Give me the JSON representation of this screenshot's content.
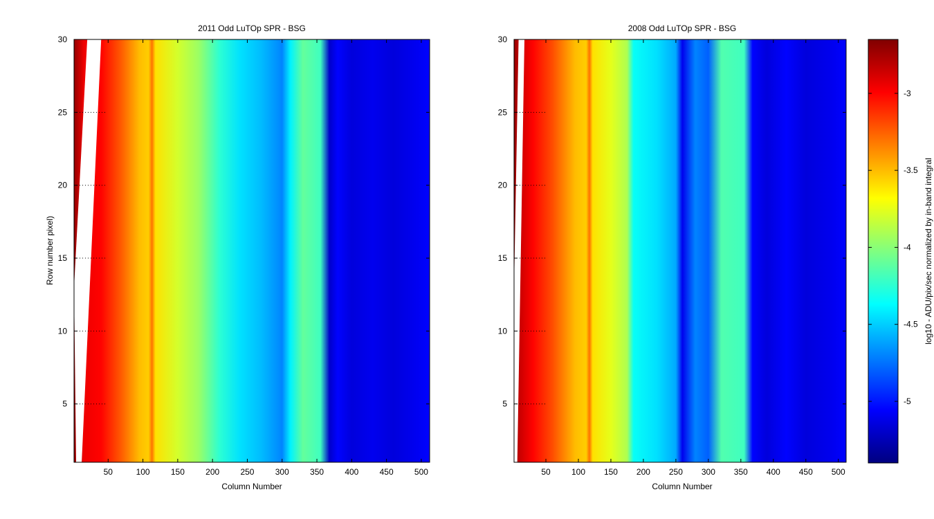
{
  "chart_data": [
    {
      "type": "heatmap",
      "title": "2011 Odd LuTOp SPR - BSG",
      "xlabel": "Column Number",
      "ylabel": "Row number pixel)",
      "xlim": [
        1,
        512
      ],
      "ylim": [
        1,
        30
      ],
      "x_ticks": [
        50,
        100,
        150,
        200,
        250,
        300,
        350,
        400,
        450,
        500
      ],
      "y_ticks": [
        5,
        10,
        15,
        20,
        25,
        30
      ],
      "grid": "dotted",
      "blank_wedge": {
        "left_column_at_row_30": 20,
        "right_column_at_row_30": 40,
        "left_column_at_row_1": 4,
        "right_column_at_row_1": 12,
        "extends_to_row": 13
      },
      "profile": [
        {
          "column": 1,
          "value": -2.7
        },
        {
          "column": 15,
          "value": -2.95
        },
        {
          "column": 40,
          "value": -3.0
        },
        {
          "column": 70,
          "value": -3.25
        },
        {
          "column": 95,
          "value": -3.5
        },
        {
          "column": 108,
          "value": -3.55
        },
        {
          "column": 113,
          "value": -3.3
        },
        {
          "column": 118,
          "value": -3.6
        },
        {
          "column": 150,
          "value": -3.8
        },
        {
          "column": 180,
          "value": -3.95
        },
        {
          "column": 210,
          "value": -4.25
        },
        {
          "column": 240,
          "value": -4.45
        },
        {
          "column": 270,
          "value": -4.55
        },
        {
          "column": 300,
          "value": -4.7
        },
        {
          "column": 312,
          "value": -4.4
        },
        {
          "column": 330,
          "value": -4.1
        },
        {
          "column": 355,
          "value": -4.2
        },
        {
          "column": 368,
          "value": -5.2
        },
        {
          "column": 380,
          "value": -5.05
        },
        {
          "column": 400,
          "value": -5.15
        },
        {
          "column": 430,
          "value": -5.1
        },
        {
          "column": 460,
          "value": -5.15
        },
        {
          "column": 490,
          "value": -5.1
        },
        {
          "column": 512,
          "value": -5.05
        }
      ]
    },
    {
      "type": "heatmap",
      "title": "2008 Odd LuTOp SPR - BSG",
      "xlabel": "Column Number",
      "ylabel": "",
      "xlim": [
        1,
        512
      ],
      "ylim": [
        1,
        30
      ],
      "x_ticks": [
        50,
        100,
        150,
        200,
        250,
        300,
        350,
        400,
        450,
        500
      ],
      "y_ticks": [
        5,
        10,
        15,
        20,
        25,
        30
      ],
      "grid": "dotted",
      "blank_wedge": {
        "left_column_at_row_30": 8,
        "right_column_at_row_30": 17,
        "left_column_at_row_1": 1,
        "right_column_at_row_1": 6,
        "extends_to_row": 13
      },
      "profile": [
        {
          "column": 1,
          "value": -2.7
        },
        {
          "column": 10,
          "value": -2.85
        },
        {
          "column": 30,
          "value": -3.0
        },
        {
          "column": 60,
          "value": -3.2
        },
        {
          "column": 95,
          "value": -3.5
        },
        {
          "column": 112,
          "value": -3.55
        },
        {
          "column": 117,
          "value": -3.3
        },
        {
          "column": 122,
          "value": -3.6
        },
        {
          "column": 150,
          "value": -3.75
        },
        {
          "column": 175,
          "value": -3.9
        },
        {
          "column": 185,
          "value": -4.35
        },
        {
          "column": 220,
          "value": -4.45
        },
        {
          "column": 250,
          "value": -4.6
        },
        {
          "column": 260,
          "value": -5.1
        },
        {
          "column": 280,
          "value": -4.7
        },
        {
          "column": 300,
          "value": -4.8
        },
        {
          "column": 320,
          "value": -4.15
        },
        {
          "column": 355,
          "value": -4.2
        },
        {
          "column": 368,
          "value": -5.05
        },
        {
          "column": 390,
          "value": -5.15
        },
        {
          "column": 420,
          "value": -5.05
        },
        {
          "column": 450,
          "value": -5.15
        },
        {
          "column": 490,
          "value": -5.1
        },
        {
          "column": 512,
          "value": -5.05
        }
      ]
    }
  ],
  "colorbar": {
    "label": "log10 - ADU/pix/sec normalized by in-band integral",
    "clim": [
      -5.4,
      -2.65
    ],
    "ticks": [
      -3,
      -3.5,
      -4,
      -4.5,
      -5
    ],
    "tick_labels": [
      "-3",
      "-3.5",
      "-4",
      "-4.5",
      "-5"
    ],
    "colormap": "jet"
  }
}
